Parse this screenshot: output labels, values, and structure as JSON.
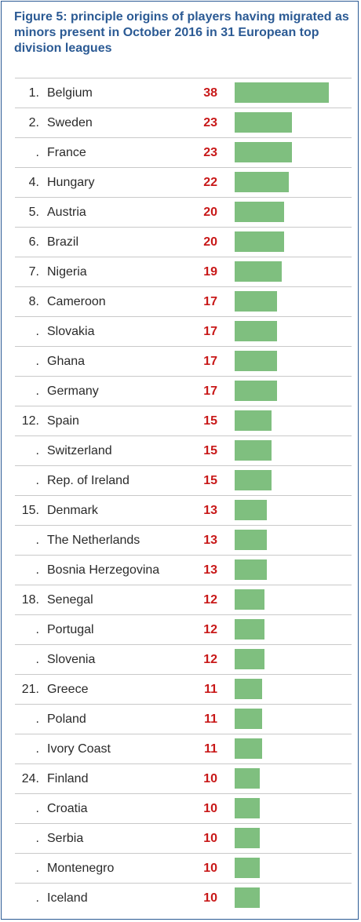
{
  "chart_data": {
    "type": "bar",
    "title": "Figure 5: principle origins of players having migrated as minors present in October 2016 in 31 European top division leagues",
    "xlim": [
      0,
      38
    ],
    "rows": [
      {
        "rank": "1.",
        "country": "Belgium",
        "value": 38
      },
      {
        "rank": "2.",
        "country": "Sweden",
        "value": 23
      },
      {
        "rank": ".",
        "country": "France",
        "value": 23
      },
      {
        "rank": "4.",
        "country": "Hungary",
        "value": 22
      },
      {
        "rank": "5.",
        "country": "Austria",
        "value": 20
      },
      {
        "rank": "6.",
        "country": "Brazil",
        "value": 20
      },
      {
        "rank": "7.",
        "country": "Nigeria",
        "value": 19
      },
      {
        "rank": "8.",
        "country": "Cameroon",
        "value": 17
      },
      {
        "rank": ".",
        "country": "Slovakia",
        "value": 17
      },
      {
        "rank": ".",
        "country": "Ghana",
        "value": 17
      },
      {
        "rank": ".",
        "country": "Germany",
        "value": 17
      },
      {
        "rank": "12.",
        "country": "Spain",
        "value": 15
      },
      {
        "rank": ".",
        "country": "Switzerland",
        "value": 15
      },
      {
        "rank": ".",
        "country": "Rep. of Ireland",
        "value": 15
      },
      {
        "rank": "15.",
        "country": "Denmark",
        "value": 13
      },
      {
        "rank": ".",
        "country": "The Netherlands",
        "value": 13
      },
      {
        "rank": ".",
        "country": "Bosnia Herzegovina",
        "value": 13
      },
      {
        "rank": "18.",
        "country": "Senegal",
        "value": 12
      },
      {
        "rank": ".",
        "country": "Portugal",
        "value": 12
      },
      {
        "rank": ".",
        "country": "Slovenia",
        "value": 12
      },
      {
        "rank": "21.",
        "country": "Greece",
        "value": 11
      },
      {
        "rank": ".",
        "country": "Poland",
        "value": 11
      },
      {
        "rank": ".",
        "country": "Ivory Coast",
        "value": 11
      },
      {
        "rank": "24.",
        "country": "Finland",
        "value": 10
      },
      {
        "rank": ".",
        "country": "Croatia",
        "value": 10
      },
      {
        "rank": ".",
        "country": "Serbia",
        "value": 10
      },
      {
        "rank": ".",
        "country": "Montenegro",
        "value": 10
      },
      {
        "rank": ".",
        "country": "Iceland",
        "value": 10
      }
    ]
  },
  "colors": {
    "title": "#2b5a94",
    "border": "#2b5a94",
    "value_text": "#c81818",
    "bar": "#7fbf7f",
    "row_divider": "#c9c9c9"
  }
}
